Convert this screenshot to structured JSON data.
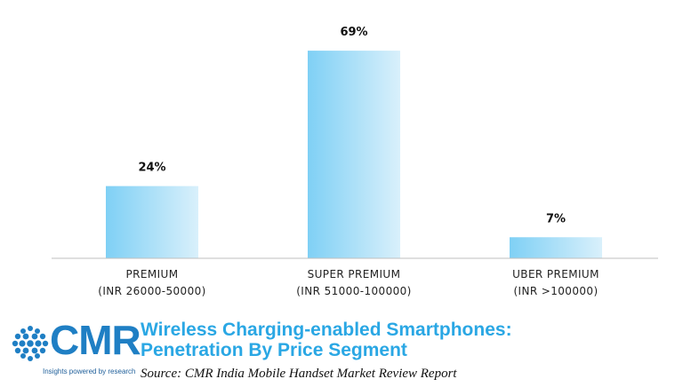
{
  "chart_data": {
    "type": "bar",
    "categories": [
      [
        "PREMIUM",
        "(INR 26000-50000)"
      ],
      [
        "SUPER PREMIUM",
        "(INR 51000-100000)"
      ],
      [
        "UBER PREMIUM",
        "(INR >100000)"
      ]
    ],
    "values": [
      24,
      69,
      7
    ],
    "data_labels": [
      "24%",
      "69%",
      "7%"
    ],
    "ylim": [
      0,
      75
    ],
    "grid": false,
    "legend": "none",
    "bar_color_start": "#7fd0f5",
    "bar_color_end": "#d9f0fb",
    "axis_color": "#bfbfbf"
  },
  "footer": {
    "logo_text": "CMR",
    "logo_tagline": "Insights powered by research",
    "title_line1": "Wireless Charging-enabled Smartphones:",
    "title_line2": "Penetration By Price Segment",
    "source": "Source:  CMR India Mobile Handset Market Review Report"
  },
  "colors": {
    "brand_blue": "#1f7fc4",
    "title_blue": "#2aa7e4"
  }
}
